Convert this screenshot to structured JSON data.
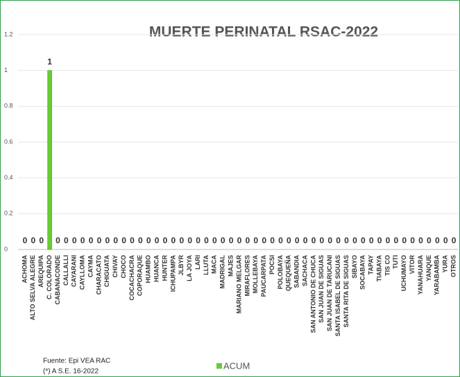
{
  "chart_data": {
    "type": "bar",
    "title": "MUERTE PERINATAL RSAC-2022",
    "categories": [
      "ACHOMA",
      "ALTO SELVA ALEGRE",
      "AREQUIPA",
      "C. COLORADO",
      "CABANACONDE",
      "CALLALLI",
      "CAYARANI",
      "CAYLLOMA",
      "CAYMA",
      "CHARACATO",
      "CHIGUATA",
      "CHIVAY",
      "CHOCO",
      "COCACHACRA",
      "COPORAQUE",
      "HUAMBO",
      "HUANCA",
      "HUNTER",
      "ICHUPAMPA",
      "JLBYR",
      "LA JOYA",
      "LARI",
      "LLUTA",
      "MACA",
      "MADRIGAL",
      "MAJES",
      "MARIANO MELGAR",
      "MIRAFLORES",
      "MOLLEBAYA",
      "PAUCARPATA",
      "POCSI",
      "POLOBAYA",
      "QUEQUEÑA",
      "SABANDIA",
      "SACHACA",
      "SAN ANTONIO DE CHUCA",
      "SAN JUAN DE SIGUAS",
      "SAN JUAN DE TARUCANI",
      "SANTA ISABEL DE SIGUAS",
      "SANTA RITA DE SIGUAS",
      "SIBAYO",
      "SOCABAYA",
      "TAPAY",
      "TIABAYA",
      "TIS CO",
      "TUTI",
      "UCHUMAYO",
      "VITOR",
      "YANAHUARA",
      "YANQUE",
      "YARABAMBA",
      "YURA",
      "OTROS"
    ],
    "series": [
      {
        "name": "ACUM",
        "color": "#66cc33",
        "values": [
          0,
          0,
          0,
          1,
          0,
          0,
          0,
          0,
          0,
          0,
          0,
          0,
          0,
          0,
          0,
          0,
          0,
          0,
          0,
          0,
          0,
          0,
          0,
          0,
          0,
          0,
          0,
          0,
          0,
          0,
          0,
          0,
          0,
          0,
          0,
          0,
          0,
          0,
          0,
          0,
          0,
          0,
          0,
          0,
          0,
          0,
          0,
          0,
          0,
          0,
          0,
          0,
          0
        ]
      }
    ],
    "ylim": [
      0,
      1.2
    ],
    "yticks": [
      0,
      0.2,
      0.4,
      0.6,
      0.8,
      1,
      1.2
    ],
    "grid": true,
    "source": [
      "Fuente: Epi VEA RAC",
      "(*) A S.E. 16-2022"
    ]
  }
}
